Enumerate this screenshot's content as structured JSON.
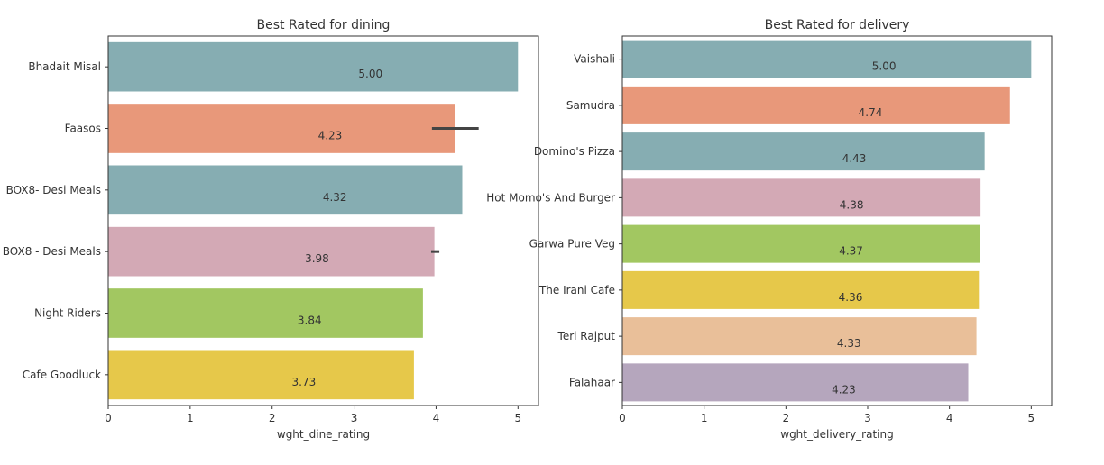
{
  "chart_data": [
    {
      "type": "bar",
      "orientation": "horizontal",
      "title": "Best Rated for dining",
      "xlabel": "wght_dine_rating",
      "ylabel": "",
      "xlim": [
        0,
        5.25
      ],
      "xticks": [
        "0",
        "1",
        "2",
        "3",
        "4",
        "5"
      ],
      "categories": [
        "Bhadait Misal",
        "Faasos",
        "BOX8- Desi Meals",
        "BOX8 - Desi Meals",
        "Night Riders",
        "Cafe Goodluck"
      ],
      "values": [
        5.0,
        4.23,
        4.32,
        3.98,
        3.84,
        3.73
      ],
      "data_labels": [
        "5.00",
        "4.23",
        "4.32",
        "3.98",
        "3.84",
        "3.73"
      ],
      "error_bars": [
        null,
        [
          3.95,
          4.52
        ],
        null,
        [
          3.94,
          4.04
        ],
        null,
        null
      ],
      "colors": [
        "#86adb2",
        "#e8987a",
        "#86adb2",
        "#d3a9b5",
        "#a2c761",
        "#e6c84a"
      ],
      "grid": false
    },
    {
      "type": "bar",
      "orientation": "horizontal",
      "title": "Best Rated for delivery",
      "xlabel": "wght_delivery_rating",
      "ylabel": "",
      "xlim": [
        0,
        5.25
      ],
      "xticks": [
        "0",
        "1",
        "2",
        "3",
        "4",
        "5"
      ],
      "categories": [
        "Vaishali",
        "Samudra",
        "Domino's Pizza",
        "Hot Momo's And Burger",
        "Garwa Pure Veg",
        "The Irani Cafe",
        "Teri Rajput",
        "Falahaar"
      ],
      "values": [
        5.0,
        4.74,
        4.43,
        4.38,
        4.37,
        4.36,
        4.33,
        4.23
      ],
      "data_labels": [
        "5.00",
        "4.74",
        "4.43",
        "4.38",
        "4.37",
        "4.36",
        "4.33",
        "4.23"
      ],
      "colors": [
        "#86adb2",
        "#e8987a",
        "#86adb2",
        "#d3a9b5",
        "#a2c761",
        "#e6c84a",
        "#e9bf99",
        "#b5a6bd"
      ],
      "grid": false
    }
  ]
}
